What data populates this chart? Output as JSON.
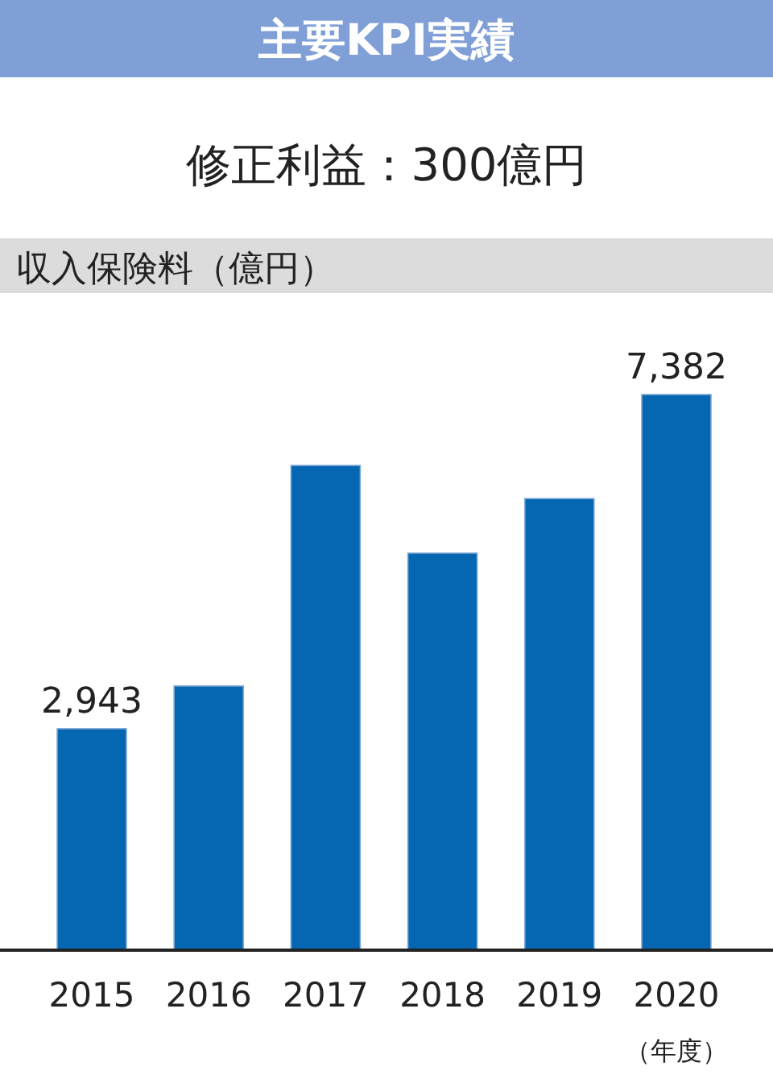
{
  "chart_data": {
    "type": "bar",
    "title": "主要KPI実績",
    "subtitle": "修正利益：300億円",
    "ylabel": "収入保険料（億円）",
    "xlabel": "（年度）",
    "categories": [
      "2015",
      "2016",
      "2017",
      "2018",
      "2019",
      "2020"
    ],
    "values": [
      2943,
      3510,
      6440,
      5275,
      6000,
      7382
    ],
    "value_labels": [
      "2,943",
      null,
      null,
      null,
      null,
      "7,382"
    ],
    "color": "#0566b2"
  }
}
